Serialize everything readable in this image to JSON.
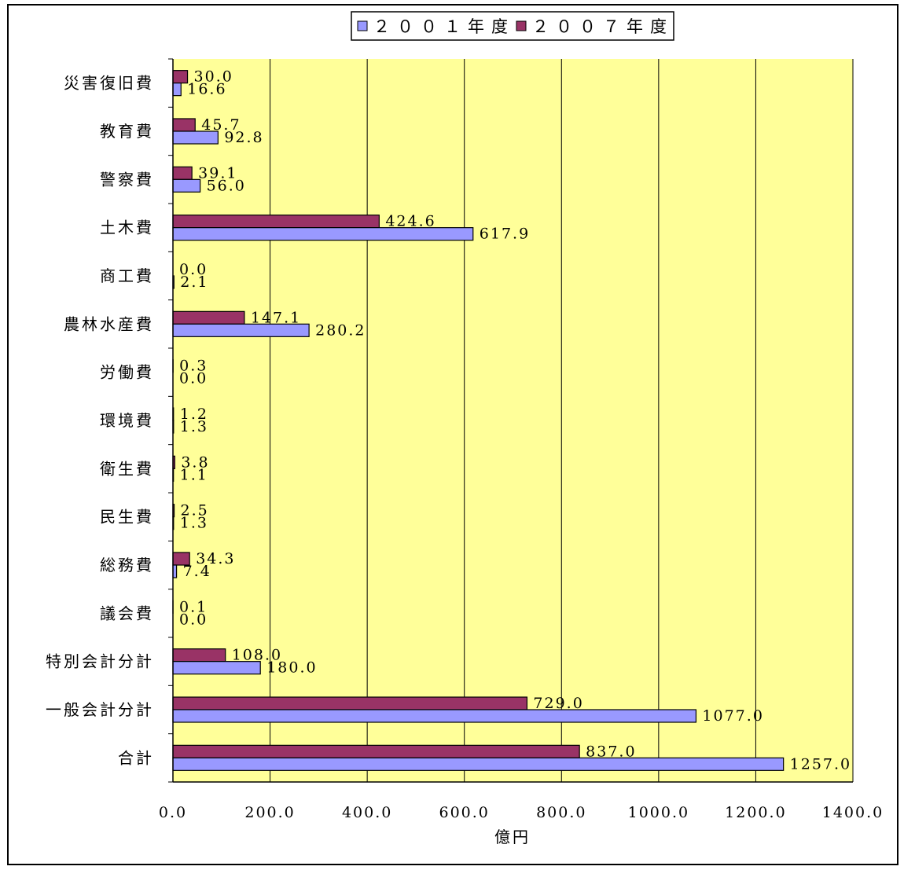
{
  "chart_data": {
    "type": "bar",
    "orientation": "horizontal",
    "xlabel": "億円",
    "xlim": [
      0,
      1400
    ],
    "x_ticks": [
      "0.0",
      "200.0",
      "400.0",
      "600.0",
      "800.0",
      "1000.0",
      "1200.0",
      "1400.0"
    ],
    "grid": "vertical",
    "legend_position": "top",
    "plot_background": "#ffff99",
    "categories": [
      "災害復旧費",
      "教育費",
      "警察費",
      "土木費",
      "商工費",
      "農林水産費",
      "労働費",
      "環境費",
      "衛生費",
      "民生費",
      "総務費",
      "議会費",
      "特別会計分計",
      "一般会計分計",
      "合計"
    ],
    "series": [
      {
        "name": "２００７年度",
        "color": "#993366",
        "values": [
          30.0,
          45.7,
          39.1,
          424.6,
          0.0,
          147.1,
          0.3,
          1.2,
          3.8,
          2.5,
          34.3,
          0.1,
          108.0,
          729.0,
          837.0
        ],
        "labels": [
          "30.0",
          "45.7",
          "39.1",
          "424.6",
          "0.0",
          "147.1",
          "0.3",
          "1.2",
          "3.8",
          "2.5",
          "34.3",
          "0.1",
          "108.0",
          "729.0",
          "837.0"
        ]
      },
      {
        "name": "２００１年度",
        "color": "#9999ff",
        "values": [
          16.6,
          92.8,
          56.0,
          617.9,
          2.1,
          280.2,
          0.0,
          1.3,
          1.1,
          1.3,
          7.4,
          0.0,
          180.0,
          1077.0,
          1257.0
        ],
        "labels": [
          "16.6",
          "92.8",
          "56.0",
          "617.9",
          "2.1",
          "280.2",
          "0.0",
          "1.3",
          "1.1",
          "1.3",
          "7.4",
          "0.0",
          "180.0",
          "1077.0",
          "1257.0"
        ]
      }
    ],
    "legend": [
      "２００１年度",
      "２００７年度"
    ]
  }
}
